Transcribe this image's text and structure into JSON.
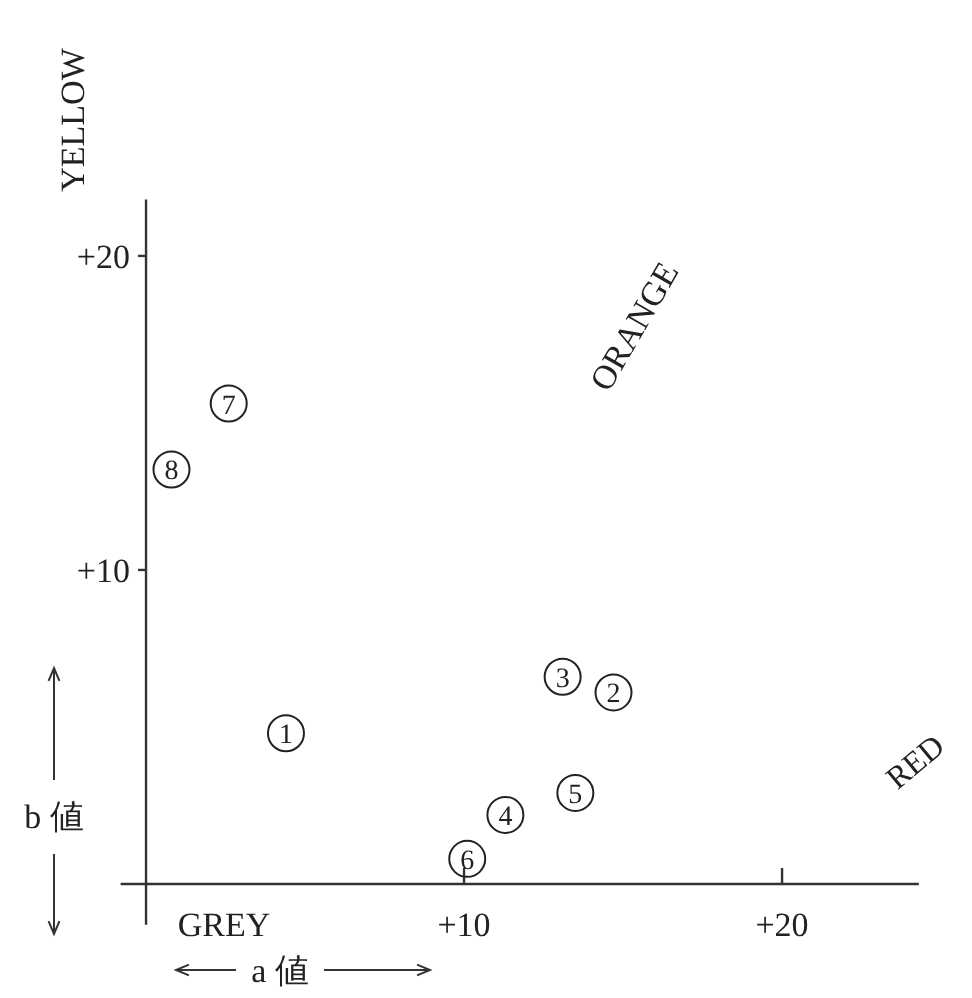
{
  "chart_data": {
    "type": "scatter",
    "xlabel": "a 値",
    "ylabel": "b 値",
    "x": [
      4.4,
      14.7,
      13.1,
      11.3,
      13.5,
      10.1,
      2.6,
      0.8
    ],
    "values": [
      4.8,
      6.1,
      6.6,
      2.2,
      2.9,
      0.8,
      15.3,
      13.2
    ],
    "marker": "circle",
    "color": "#222222",
    "xlim": [
      -0.8,
      24.3
    ],
    "ylim": [
      -1.3,
      21.8
    ],
    "xticks": [
      {
        "value": 10,
        "label": "+10"
      },
      {
        "value": 20,
        "label": "+20"
      }
    ],
    "yticks": [
      {
        "value": 10,
        "label": "+10"
      },
      {
        "value": 20,
        "label": "+20"
      }
    ],
    "annotations": [
      "YELLOW",
      "ORANGE",
      "RED",
      "GREY",
      {
        "text": "1",
        "x": 4.4,
        "y": 4.8
      },
      {
        "text": "2",
        "x": 14.7,
        "y": 6.1
      },
      {
        "text": "3",
        "x": 13.1,
        "y": 6.6
      },
      {
        "text": "4",
        "x": 11.3,
        "y": 2.2
      },
      {
        "text": "5",
        "x": 13.5,
        "y": 2.9
      },
      {
        "text": "6",
        "x": 10.1,
        "y": 0.8
      },
      {
        "text": "7",
        "x": 2.6,
        "y": 15.3
      },
      {
        "text": "8",
        "x": 0.8,
        "y": 13.2
      }
    ]
  }
}
